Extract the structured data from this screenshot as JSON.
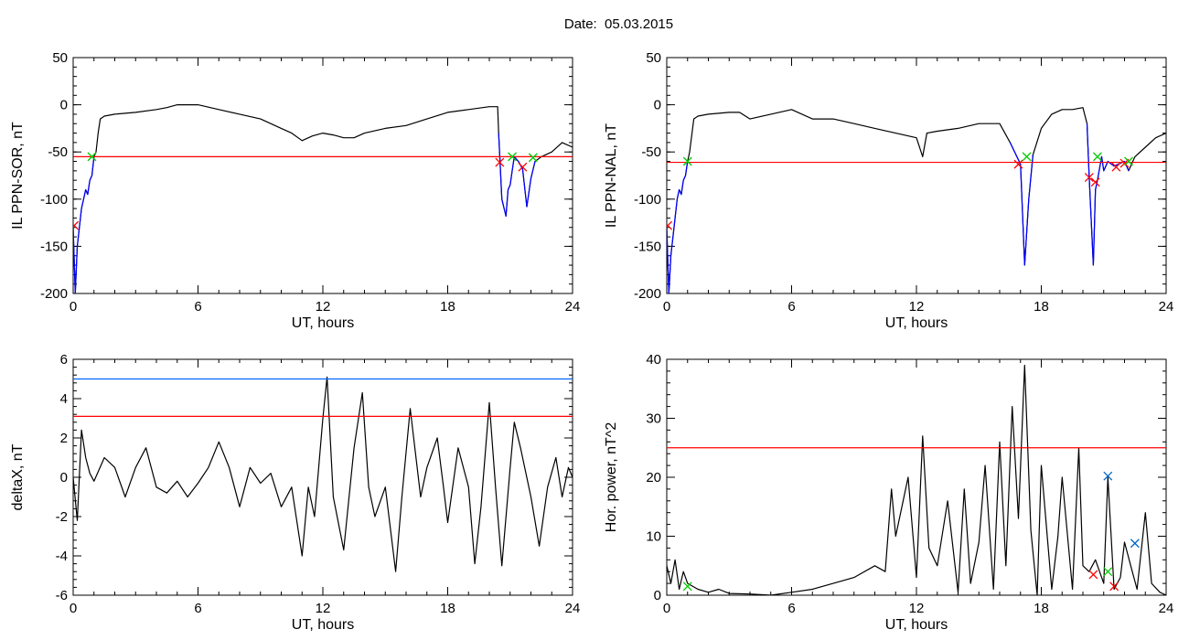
{
  "page": {
    "title": "Date:  05.03.2015"
  },
  "chart_data": [
    {
      "type": "line",
      "ylabel": "IL PPN-SOR, nT",
      "xlabel": "UT, hours",
      "xlim": [
        0,
        24
      ],
      "ylim": [
        -200,
        50
      ],
      "xticks": [
        0,
        6,
        12,
        18,
        24
      ],
      "xtick_labels": [
        "0",
        "6",
        "12",
        "18",
        "24"
      ],
      "yticks": [
        -200,
        -150,
        -100,
        -50,
        0,
        50
      ],
      "ytick_labels": [
        "-200",
        "-150",
        "-100",
        "-50",
        "0",
        "50"
      ],
      "series": [
        {
          "color": "#000000",
          "x": [
            0,
            0.1,
            0.2,
            0.3,
            0.4,
            0.5,
            0.6,
            0.7,
            0.8,
            0.9,
            1.0,
            1.1,
            1.2,
            1.3,
            1.5,
            2,
            3,
            4,
            4.5,
            5,
            6,
            7,
            8,
            9,
            10,
            10.5,
            11,
            11.5,
            12,
            12.5,
            13,
            13.5,
            14,
            15,
            16,
            17,
            18,
            19,
            20,
            20.4,
            20.45,
            20.6,
            20.8,
            20.9,
            21.0,
            21.1,
            21.2,
            21.4,
            21.6,
            21.8,
            22.0,
            22.2,
            22.5,
            23,
            23.5,
            24
          ],
          "y": [
            -130,
            -200,
            -150,
            -130,
            -110,
            -100,
            -90,
            -95,
            -80,
            -75,
            -55,
            -50,
            -30,
            -15,
            -12,
            -10,
            -8,
            -5,
            -3,
            0,
            0,
            -5,
            -10,
            -15,
            -25,
            -30,
            -38,
            -33,
            -30,
            -32,
            -35,
            -35,
            -30,
            -25,
            -22,
            -15,
            -8,
            -5,
            -2,
            -2,
            -30,
            -100,
            -118,
            -90,
            -85,
            -70,
            -55,
            -60,
            -68,
            -108,
            -78,
            -60,
            -55,
            -50,
            -40,
            -45
          ]
        },
        {
          "color": "#0000ff",
          "x": [
            0,
            0.1,
            0.2,
            0.3,
            0.4,
            0.5,
            0.6,
            0.7,
            0.8,
            0.9,
            1.0
          ],
          "y": [
            -130,
            -200,
            -150,
            -130,
            -110,
            -100,
            -90,
            -95,
            -80,
            -75,
            -55
          ]
        },
        {
          "color": "#0000ff",
          "x": [
            20.45,
            20.6,
            20.8,
            20.9,
            21.0,
            21.1,
            21.2,
            21.4,
            21.6,
            21.8,
            22.0,
            22.2
          ],
          "y": [
            -30,
            -100,
            -118,
            -90,
            -85,
            -70,
            -55,
            -60,
            -68,
            -108,
            -78,
            -60
          ]
        }
      ],
      "hlines": [
        {
          "y": -55,
          "color": "#ff0000"
        }
      ],
      "markers": [
        {
          "x": 0.05,
          "y": -128,
          "color": "#ff0000"
        },
        {
          "x": 0.9,
          "y": -55,
          "color": "#00cc00"
        },
        {
          "x": 20.5,
          "y": -61,
          "color": "#ff0000"
        },
        {
          "x": 21.1,
          "y": -55,
          "color": "#00cc00"
        },
        {
          "x": 21.6,
          "y": -66,
          "color": "#ff0000"
        },
        {
          "x": 22.1,
          "y": -56,
          "color": "#00cc00"
        }
      ]
    },
    {
      "type": "line",
      "ylabel": "IL PPN-NAL, nT",
      "xlabel": "UT, hours",
      "xlim": [
        0,
        24
      ],
      "ylim": [
        -200,
        50
      ],
      "xticks": [
        0,
        6,
        12,
        18,
        24
      ],
      "xtick_labels": [
        "0",
        "6",
        "12",
        "18",
        "24"
      ],
      "yticks": [
        -200,
        -150,
        -100,
        -50,
        0,
        50
      ],
      "ytick_labels": [
        "-200",
        "-150",
        "-100",
        "-50",
        "0",
        "50"
      ],
      "series": [
        {
          "color": "#000000",
          "x": [
            0,
            0.1,
            0.2,
            0.3,
            0.4,
            0.5,
            0.6,
            0.7,
            0.8,
            0.9,
            1.0,
            1.1,
            1.3,
            1.5,
            2,
            3,
            3.5,
            4,
            5,
            6,
            7,
            8,
            9,
            10,
            11,
            12,
            12.3,
            12.5,
            13,
            14,
            15,
            16,
            16.5,
            17,
            17.2,
            17.4,
            17.6,
            18,
            18.5,
            19,
            19.5,
            20,
            20.2,
            20.3,
            20.5,
            20.6,
            20.7,
            20.9,
            21.0,
            21.2,
            21.5,
            21.8,
            22.0,
            22.2,
            22.5,
            23,
            23.5,
            24
          ],
          "y": [
            -130,
            -200,
            -160,
            -140,
            -120,
            -100,
            -90,
            -95,
            -80,
            -75,
            -60,
            -50,
            -15,
            -12,
            -10,
            -8,
            -8,
            -15,
            -10,
            -5,
            -15,
            -15,
            -20,
            -25,
            -30,
            -35,
            -55,
            -30,
            -28,
            -25,
            -20,
            -20,
            -40,
            -63,
            -170,
            -100,
            -53,
            -25,
            -10,
            -5,
            -5,
            -3,
            -20,
            -75,
            -170,
            -90,
            -80,
            -55,
            -70,
            -60,
            -65,
            -62,
            -60,
            -70,
            -55,
            -45,
            -35,
            -30
          ]
        },
        {
          "color": "#0000ff",
          "x": [
            0,
            0.1,
            0.2,
            0.3,
            0.4,
            0.5,
            0.6,
            0.7,
            0.8,
            0.9,
            1.0
          ],
          "y": [
            -130,
            -200,
            -160,
            -140,
            -120,
            -100,
            -90,
            -95,
            -80,
            -75,
            -60
          ]
        },
        {
          "color": "#0000ff",
          "x": [
            16.5,
            17,
            17.2,
            17.4,
            17.6
          ],
          "y": [
            -40,
            -63,
            -170,
            -100,
            -53
          ]
        },
        {
          "color": "#0000ff",
          "x": [
            20.2,
            20.3,
            20.5,
            20.6,
            20.7,
            20.9,
            21.0,
            21.2,
            21.5,
            21.8,
            22.0,
            22.2
          ],
          "y": [
            -20,
            -75,
            -170,
            -90,
            -80,
            -55,
            -70,
            -60,
            -65,
            -62,
            -60,
            -70
          ]
        }
      ],
      "hlines": [
        {
          "y": -61,
          "color": "#ff0000"
        }
      ],
      "markers": [
        {
          "x": 0.05,
          "y": -128,
          "color": "#ff0000"
        },
        {
          "x": 1.0,
          "y": -60,
          "color": "#00cc00"
        },
        {
          "x": 16.9,
          "y": -63,
          "color": "#ff0000"
        },
        {
          "x": 17.3,
          "y": -55,
          "color": "#00cc00"
        },
        {
          "x": 20.3,
          "y": -77,
          "color": "#ff0000"
        },
        {
          "x": 20.6,
          "y": -82,
          "color": "#ff0000"
        },
        {
          "x": 20.7,
          "y": -55,
          "color": "#00cc00"
        },
        {
          "x": 21.6,
          "y": -66,
          "color": "#ff0000"
        },
        {
          "x": 22.0,
          "y": -62,
          "color": "#ff0000"
        },
        {
          "x": 22.2,
          "y": -60,
          "color": "#00cc00"
        }
      ]
    },
    {
      "type": "line",
      "ylabel": "deltaX, nT",
      "xlabel": "UT, hours",
      "xlim": [
        0,
        24
      ],
      "ylim": [
        -6,
        6
      ],
      "xticks": [
        0,
        6,
        12,
        18,
        24
      ],
      "xtick_labels": [
        "0",
        "6",
        "12",
        "18",
        "24"
      ],
      "yticks": [
        -6,
        -4,
        -2,
        0,
        2,
        4,
        6
      ],
      "ytick_labels": [
        "-6",
        "-4",
        "-2",
        "0",
        "2",
        "4",
        "6"
      ],
      "series": [
        {
          "color": "#000000",
          "x": [
            0,
            0.2,
            0.4,
            0.6,
            0.8,
            1,
            1.5,
            2,
            2.5,
            3,
            3.5,
            4,
            4.5,
            5,
            5.5,
            6,
            6.5,
            7,
            7.5,
            8,
            8.5,
            9,
            9.5,
            10,
            10.5,
            11,
            11.3,
            11.6,
            12,
            12.2,
            12.5,
            13,
            13.5,
            13.9,
            14.2,
            14.5,
            15,
            15.5,
            15.8,
            16.2,
            16.7,
            17,
            17.5,
            17.8,
            18,
            18.5,
            19,
            19.3,
            19.6,
            20,
            20.3,
            20.6,
            21,
            21.2,
            21.5,
            22,
            22.4,
            22.8,
            23.2,
            23.5,
            23.8,
            24
          ],
          "y": [
            0,
            -2.2,
            2.4,
            1,
            0.2,
            -0.2,
            1,
            0.5,
            -1,
            0.5,
            1.5,
            -0.5,
            -0.8,
            -0.2,
            -1,
            -0.3,
            0.5,
            1.8,
            0.5,
            -1.5,
            0.5,
            -0.3,
            0.2,
            -1.5,
            -0.5,
            -4,
            -0.5,
            -2,
            3,
            5.1,
            -1,
            -3.7,
            1.5,
            4.3,
            -0.5,
            -2,
            -0.5,
            -4.8,
            -1,
            3.5,
            -1,
            0.5,
            2,
            -0.5,
            -2.3,
            1.5,
            -0.5,
            -4.4,
            -1.5,
            3.8,
            -0.5,
            -4.5,
            0.5,
            2.8,
            1.5,
            -1,
            -3.5,
            -0.5,
            1,
            -1,
            0.5,
            0
          ]
        }
      ],
      "hlines": [
        {
          "y": 5,
          "color": "#0066ff"
        },
        {
          "y": 3.1,
          "color": "#ff0000"
        }
      ],
      "markers": []
    },
    {
      "type": "line",
      "ylabel": "Hor. power, nT^2",
      "xlabel": "UT, hours",
      "xlim": [
        0,
        24
      ],
      "ylim": [
        0,
        40
      ],
      "xticks": [
        0,
        6,
        12,
        18,
        24
      ],
      "xtick_labels": [
        "0",
        "6",
        "12",
        "18",
        "24"
      ],
      "yticks": [
        0,
        10,
        20,
        30,
        40
      ],
      "ytick_labels": [
        "0",
        "10",
        "20",
        "30",
        "40"
      ],
      "series": [
        {
          "color": "#000000",
          "x": [
            0,
            0.2,
            0.4,
            0.6,
            0.8,
            1,
            1.5,
            2,
            2.5,
            3,
            4,
            5,
            6,
            7,
            8,
            9,
            10,
            10.5,
            10.8,
            11,
            11.3,
            11.6,
            12,
            12.3,
            12.6,
            13,
            13.5,
            14,
            14.3,
            14.6,
            15,
            15.3,
            15.7,
            16,
            16.3,
            16.6,
            16.9,
            17.2,
            17.5,
            17.8,
            18,
            18.5,
            18.8,
            19,
            19.5,
            19.8,
            20,
            20.3,
            20.6,
            21,
            21.2,
            21.5,
            21.8,
            22,
            22.3,
            22.6,
            23,
            23.3,
            23.7,
            24
          ],
          "y": [
            5,
            2,
            6,
            1,
            4,
            2,
            1,
            0.5,
            1,
            0.3,
            0.2,
            0,
            0.5,
            1,
            2,
            3,
            5,
            4,
            18,
            10,
            15,
            20,
            3,
            27,
            8,
            5,
            16,
            0.5,
            18,
            2,
            9,
            22,
            1,
            26,
            5,
            32,
            13,
            39,
            11,
            0,
            22,
            1,
            10,
            20,
            1,
            25,
            5,
            4,
            6,
            2,
            20,
            1,
            3,
            9,
            5,
            1,
            14,
            2,
            0.5,
            0
          ]
        }
      ],
      "hlines": [
        {
          "y": 25,
          "color": "#ff0000"
        }
      ],
      "markers": [
        {
          "x": 1.0,
          "y": 1.5,
          "color": "#00cc00"
        },
        {
          "x": 20.5,
          "y": 3.5,
          "color": "#ff0000"
        },
        {
          "x": 21.2,
          "y": 20.2,
          "color": "#0066cc"
        },
        {
          "x": 21.2,
          "y": 4,
          "color": "#00cc00"
        },
        {
          "x": 21.5,
          "y": 1.5,
          "color": "#ff0000"
        },
        {
          "x": 22.5,
          "y": 8.8,
          "color": "#0066cc"
        }
      ]
    }
  ]
}
